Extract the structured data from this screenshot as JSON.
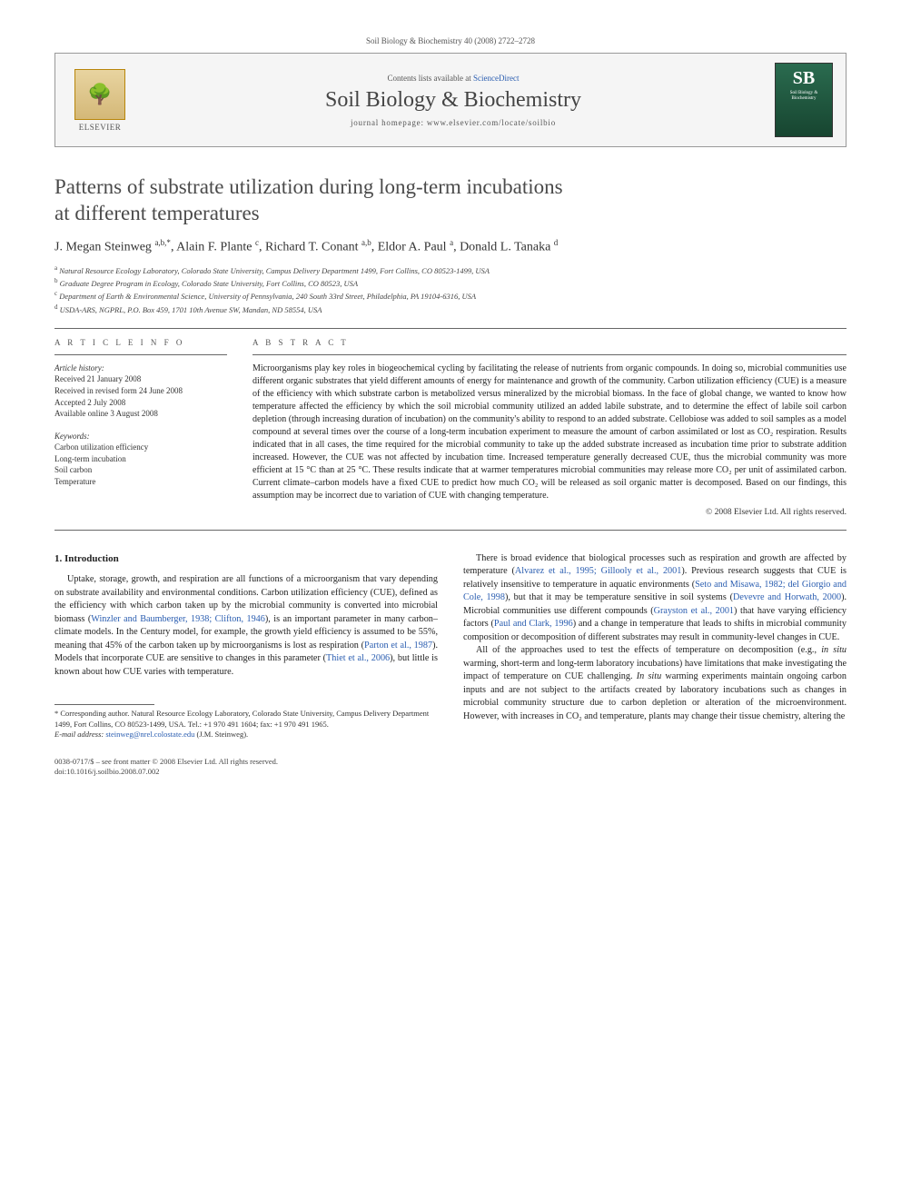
{
  "page_header": "Soil Biology & Biochemistry 40 (2008) 2722–2728",
  "header": {
    "elsevier_label": "ELSEVIER",
    "contents_prefix": "Contents lists available at ",
    "contents_link": "ScienceDirect",
    "journal_name": "Soil Biology & Biochemistry",
    "homepage_prefix": "journal homepage: ",
    "homepage_url": "www.elsevier.com/locate/soilbio",
    "cover_sb": "SB",
    "cover_label": "Soil Biology & Biochemistry"
  },
  "title_line1": "Patterns of substrate utilization during long-term incubations",
  "title_line2": "at different temperatures",
  "authors_html": "J. Megan Steinweg <sup>a,b,*</sup>, Alain F. Plante <sup>c</sup>, Richard T. Conant <sup>a,b</sup>, Eldor A. Paul <sup>a</sup>, Donald L. Tanaka <sup>d</sup>",
  "affiliations": [
    {
      "sup": "a",
      "text": "Natural Resource Ecology Laboratory, Colorado State University, Campus Delivery Department 1499, Fort Collins, CO 80523-1499, USA"
    },
    {
      "sup": "b",
      "text": "Graduate Degree Program in Ecology, Colorado State University, Fort Collins, CO 80523, USA"
    },
    {
      "sup": "c",
      "text": "Department of Earth & Environmental Science, University of Pennsylvania, 240 South 33rd Street, Philadelphia, PA 19104-6316, USA"
    },
    {
      "sup": "d",
      "text": "USDA-ARS, NGPRL, P.O. Box 459, 1701 10th Avenue SW, Mandan, ND 58554, USA"
    }
  ],
  "labels": {
    "article_info": "A R T I C L E   I N F O",
    "abstract": "A B S T R A C T"
  },
  "article_history": {
    "heading": "Article history:",
    "received": "Received 21 January 2008",
    "revised": "Received in revised form 24 June 2008",
    "accepted": "Accepted 2 July 2008",
    "online": "Available online 3 August 2008"
  },
  "keywords": {
    "heading": "Keywords:",
    "items": [
      "Carbon utilization efficiency",
      "Long-term incubation",
      "Soil carbon",
      "Temperature"
    ]
  },
  "abstract_text": "Microorganisms play key roles in biogeochemical cycling by facilitating the release of nutrients from organic compounds. In doing so, microbial communities use different organic substrates that yield different amounts of energy for maintenance and growth of the community. Carbon utilization efficiency (CUE) is a measure of the efficiency with which substrate carbon is metabolized versus mineralized by the microbial biomass. In the face of global change, we wanted to know how temperature affected the efficiency by which the soil microbial community utilized an added labile substrate, and to determine the effect of labile soil carbon depletion (through increasing duration of incubation) on the community's ability to respond to an added substrate. Cellobiose was added to soil samples as a model compound at several times over the course of a long-term incubation experiment to measure the amount of carbon assimilated or lost as CO₂ respiration. Results indicated that in all cases, the time required for the microbial community to take up the added substrate increased as incubation time prior to substrate addition increased. However, the CUE was not affected by incubation time. Increased temperature generally decreased CUE, thus the microbial community was more efficient at 15 °C than at 25 °C. These results indicate that at warmer temperatures microbial communities may release more CO₂ per unit of assimilated carbon. Current climate–carbon models have a fixed CUE to predict how much CO₂ will be released as soil organic matter is decomposed. Based on our findings, this assumption may be incorrect due to variation of CUE with changing temperature.",
  "copyright": "© 2008 Elsevier Ltd. All rights reserved.",
  "section1_heading": "1. Introduction",
  "col1_p1_a": "Uptake, storage, growth, and respiration are all functions of a microorganism that vary depending on substrate availability and environmental conditions. Carbon utilization efficiency (CUE), defined as the efficiency with which carbon taken up by the microbial community is converted into microbial biomass (",
  "col1_ref1": "Winzler and Baumberger, 1938; Clifton, 1946",
  "col1_p1_b": "), is an important parameter in many carbon–climate models. In the Century model, for example, the growth yield efficiency is assumed to be 55%, meaning that 45% of the carbon taken up by microorganisms is lost as respiration (",
  "col1_ref2": "Parton et al., 1987",
  "col1_p1_c": "). Models that incorporate CUE are sensitive to changes in this parameter (",
  "col1_ref3": "Thiet et al., 2006",
  "col1_p1_d": "), but little is known about how CUE varies with temperature.",
  "col2_p1_a": "There is broad evidence that biological processes such as respiration and growth are affected by temperature (",
  "col2_ref1": "Alvarez et al., 1995; Gillooly et al., 2001",
  "col2_p1_b": "). Previous research suggests that CUE is relatively insensitive to temperature in aquatic environments (",
  "col2_ref2": "Seto and Misawa, 1982; del Giorgio and Cole, 1998",
  "col2_p1_c": "), but that it may be temperature sensitive in soil systems (",
  "col2_ref3": "Devevre and Horwath, 2000",
  "col2_p1_d": "). Microbial communities use different compounds (",
  "col2_ref4": "Grayston et al., 2001",
  "col2_p1_e": ") that have varying efficiency factors (",
  "col2_ref5": "Paul and Clark, 1996",
  "col2_p1_f": ") and a change in temperature that leads to shifts in microbial community composition or decomposition of different substrates may result in community-level changes in CUE.",
  "col2_p2_a": "All of the approaches used to test the effects of temperature on decomposition (e.g., ",
  "col2_p2_it": "in situ",
  "col2_p2_b": " warming, short-term and long-term laboratory incubations) have limitations that make investigating the impact of temperature on CUE challenging. ",
  "col2_p2_it2": "In situ",
  "col2_p2_c": " warming experiments maintain ongoing carbon inputs and are not subject to the artifacts created by laboratory incubations such as changes in microbial community structure due to carbon depletion or alteration of the microenvironment. However, with increases in CO₂ and temperature, plants may change their tissue chemistry, altering the",
  "footnote": {
    "corr": "* Corresponding author. Natural Resource Ecology Laboratory, Colorado State University, Campus Delivery Department 1499, Fort Collins, CO 80523-1499, USA. Tel.: +1 970 491 1604; fax: +1 970 491 1965.",
    "email_label": "E-mail address:",
    "email": "steinweg@nrel.colostate.edu",
    "email_suffix": "(J.M. Steinweg)."
  },
  "footer": {
    "issn": "0038-0717/$ – see front matter © 2008 Elsevier Ltd. All rights reserved.",
    "doi": "doi:10.1016/j.soilbio.2008.07.002"
  },
  "colors": {
    "link": "#2a5db0",
    "text": "#333333",
    "border": "#999999",
    "header_bg": "#f5f5f5"
  }
}
